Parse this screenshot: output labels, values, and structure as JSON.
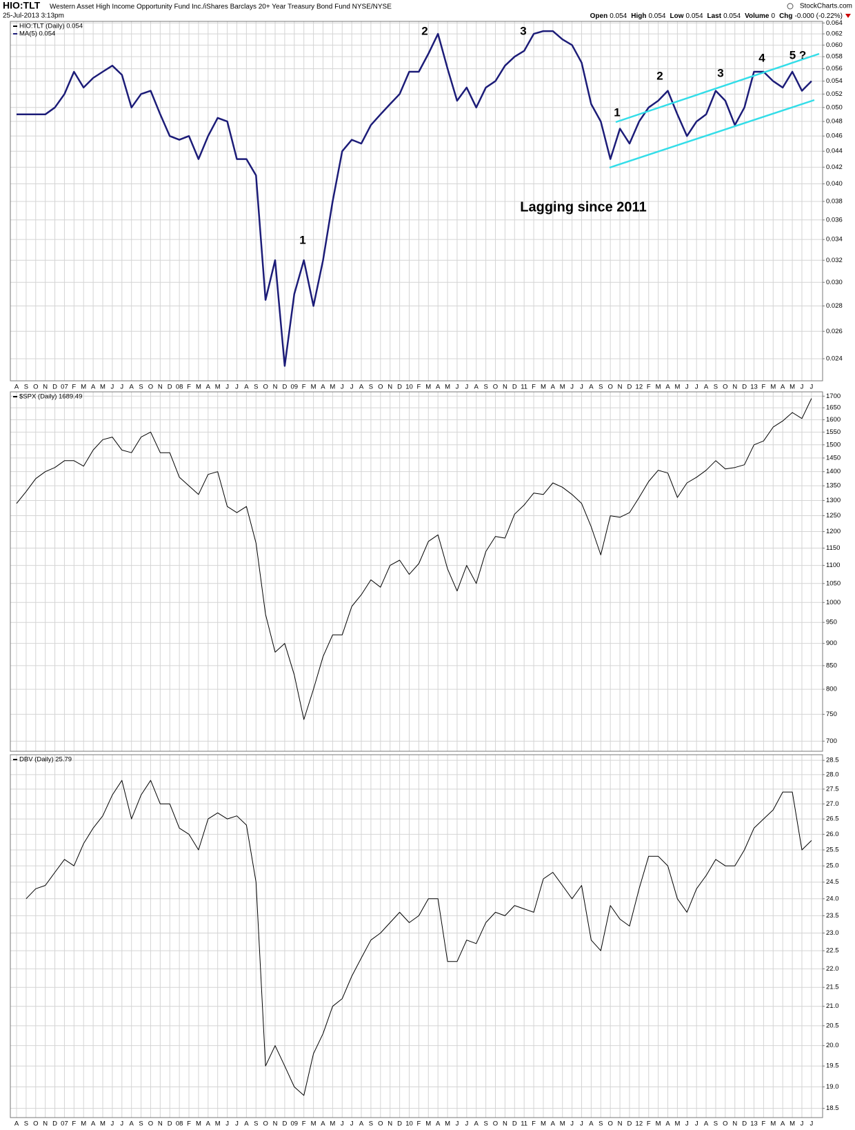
{
  "header": {
    "symbol": "HIO:TLT",
    "description": "Western Asset High Income Opportunity Fund Inc./iShares Barclays 20+ Year Treasury Bond Fund NYSE/NYSE",
    "timestamp": "25-Jul-2013 3:13pm",
    "source": "StockCharts.com",
    "quote": [
      {
        "label": "Open",
        "value": "0.054"
      },
      {
        "label": "High",
        "value": "0.054"
      },
      {
        "label": "Low",
        "value": "0.054"
      },
      {
        "label": "Last",
        "value": "0.054"
      },
      {
        "label": "Volume",
        "value": "0"
      },
      {
        "label": "Chg",
        "value": "-0.000 (-0.22%)"
      }
    ]
  },
  "chart_data": [
    {
      "type": "line",
      "log_scale": true,
      "grid": true,
      "legend": "top-left",
      "categories": [
        "A",
        "S",
        "O",
        "N",
        "D",
        "07",
        "F",
        "M",
        "A",
        "M",
        "J",
        "J",
        "A",
        "S",
        "O",
        "N",
        "D",
        "08",
        "F",
        "M",
        "A",
        "M",
        "J",
        "J",
        "A",
        "S",
        "O",
        "N",
        "D",
        "09",
        "F",
        "M",
        "A",
        "M",
        "J",
        "J",
        "A",
        "S",
        "O",
        "N",
        "D",
        "10",
        "F",
        "M",
        "A",
        "M",
        "J",
        "J",
        "A",
        "S",
        "O",
        "N",
        "D",
        "11",
        "F",
        "M",
        "A",
        "M",
        "J",
        "J",
        "A",
        "S",
        "O",
        "N",
        "D",
        "12",
        "F",
        "M",
        "A",
        "M",
        "J",
        "J",
        "A",
        "S",
        "O",
        "N",
        "D",
        "13",
        "F",
        "M",
        "A",
        "M",
        "J",
        "J"
      ],
      "ylim": [
        0.0225,
        0.0643
      ],
      "yticks": [
        0.024,
        0.026,
        0.028,
        {
          "value": 0.03,
          "label": "0.030"
        },
        0.032,
        0.034,
        0.036,
        0.038,
        {
          "value": 0.04,
          "label": "0.040"
        },
        0.042,
        0.044,
        0.046,
        0.048,
        {
          "value": 0.05,
          "label": "0.050"
        },
        0.052,
        0.054,
        0.056,
        0.058,
        {
          "value": 0.06,
          "label": "0.060"
        },
        0.062,
        0.064
      ],
      "series": [
        {
          "name": "HIO:TLT (Daily) 0.054",
          "color": "#000000",
          "width": 1,
          "values": [
            0.049,
            0.049,
            0.049,
            0.049,
            0.05,
            0.052,
            0.0555,
            0.053,
            0.0545,
            0.0555,
            0.0565,
            0.055,
            0.05,
            0.052,
            0.0525,
            0.049,
            0.046,
            0.0455,
            0.046,
            0.043,
            0.046,
            0.0485,
            0.048,
            0.043,
            0.043,
            0.041,
            0.0285,
            0.032,
            0.0235,
            0.029,
            0.032,
            0.028,
            0.032,
            0.038,
            0.044,
            0.0455,
            0.045,
            0.0475,
            0.049,
            0.0505,
            0.052,
            0.0555,
            0.0555,
            0.0585,
            0.062,
            0.056,
            0.051,
            0.053,
            0.05,
            0.053,
            0.054,
            0.0565,
            0.058,
            0.059,
            0.062,
            0.0625,
            0.0625,
            0.061,
            0.06,
            0.057,
            0.0505,
            0.048,
            0.043,
            0.047,
            0.045,
            0.048,
            0.05,
            0.051,
            0.0525,
            0.049,
            0.046,
            0.048,
            0.049,
            0.0525,
            0.051,
            0.0475,
            0.05,
            0.0555,
            0.0555,
            0.054,
            0.053,
            0.0555,
            0.0525,
            0.054
          ]
        },
        {
          "name": "MA(5) 0.054",
          "color": "#1c1c78",
          "width": 2.5,
          "values": [
            0.049,
            0.049,
            0.049,
            0.049,
            0.05,
            0.052,
            0.0555,
            0.053,
            0.0545,
            0.0555,
            0.0565,
            0.055,
            0.05,
            0.052,
            0.0525,
            0.049,
            0.046,
            0.0455,
            0.046,
            0.043,
            0.046,
            0.0485,
            0.048,
            0.043,
            0.043,
            0.041,
            0.0285,
            0.032,
            0.0235,
            0.029,
            0.032,
            0.028,
            0.032,
            0.038,
            0.044,
            0.0455,
            0.045,
            0.0475,
            0.049,
            0.0505,
            0.052,
            0.0555,
            0.0555,
            0.0585,
            0.062,
            0.056,
            0.051,
            0.053,
            0.05,
            0.053,
            0.054,
            0.0565,
            0.058,
            0.059,
            0.062,
            0.0625,
            0.0625,
            0.061,
            0.06,
            0.057,
            0.0505,
            0.048,
            0.043,
            0.047,
            0.045,
            0.048,
            0.05,
            0.051,
            0.0525,
            0.049,
            0.046,
            0.048,
            0.049,
            0.0525,
            0.051,
            0.0475,
            0.05,
            0.0555,
            0.0555,
            0.054,
            0.053,
            0.0555,
            0.0525,
            0.054
          ]
        }
      ],
      "annotations": [
        {
          "text": "1",
          "color": "#000000"
        },
        {
          "text": "2",
          "color": "#000000"
        },
        {
          "text": "3",
          "color": "#000000"
        },
        {
          "text": "Lagging since 2011",
          "color": "#000000"
        },
        {
          "text": "1",
          "color": "#cc0000"
        },
        {
          "text": "2",
          "color": "#cc0000"
        },
        {
          "text": "3",
          "color": "#cc0000"
        },
        {
          "text": "4",
          "color": "#cc0000"
        },
        {
          "text": "5 ?",
          "color": "#cc0000"
        }
      ]
    },
    {
      "type": "line",
      "log_scale": true,
      "grid": true,
      "legend": "top-left",
      "ylim": [
        682,
        1719
      ],
      "yticks": [
        700,
        750,
        800,
        850,
        900,
        950,
        1000,
        1050,
        1100,
        1150,
        1200,
        1250,
        1300,
        1350,
        1400,
        1450,
        1500,
        1550,
        1600,
        1650,
        1700
      ],
      "series": [
        {
          "name": "$SPX (Daily) 1689.49",
          "color": "#000000",
          "width": 1,
          "values": [
            1290,
            1330,
            1375,
            1400,
            1415,
            1440,
            1440,
            1420,
            1480,
            1520,
            1530,
            1480,
            1470,
            1530,
            1550,
            1470,
            1470,
            1380,
            1350,
            1320,
            1390,
            1400,
            1280,
            1260,
            1280,
            1165,
            970,
            880,
            900,
            830,
            740,
            800,
            870,
            920,
            920,
            990,
            1020,
            1060,
            1040,
            1100,
            1115,
            1075,
            1105,
            1170,
            1190,
            1090,
            1030,
            1100,
            1050,
            1140,
            1185,
            1180,
            1255,
            1285,
            1325,
            1320,
            1360,
            1345,
            1320,
            1290,
            1215,
            1130,
            1250,
            1245,
            1260,
            1310,
            1365,
            1405,
            1395,
            1310,
            1360,
            1380,
            1405,
            1440,
            1410,
            1415,
            1425,
            1500,
            1515,
            1570,
            1595,
            1630,
            1605,
            1690
          ]
        }
      ]
    },
    {
      "type": "line",
      "log_scale": true,
      "grid": true,
      "legend": "top-left",
      "categories": [
        "A",
        "S",
        "O",
        "N",
        "D",
        "07",
        "F",
        "M",
        "A",
        "M",
        "J",
        "J",
        "A",
        "S",
        "O",
        "N",
        "D",
        "08",
        "F",
        "M",
        "A",
        "M",
        "J",
        "J",
        "A",
        "S",
        "O",
        "N",
        "D",
        "09",
        "F",
        "M",
        "A",
        "M",
        "J",
        "J",
        "A",
        "S",
        "O",
        "N",
        "D",
        "10",
        "F",
        "M",
        "A",
        "M",
        "J",
        "J",
        "A",
        "S",
        "O",
        "N",
        "D",
        "11",
        "F",
        "M",
        "A",
        "M",
        "J",
        "J",
        "A",
        "S",
        "O",
        "N",
        "D",
        "12",
        "F",
        "M",
        "A",
        "M",
        "J",
        "J",
        "A",
        "S",
        "O",
        "N",
        "D",
        "13",
        "F",
        "M",
        "A",
        "M",
        "J",
        "J"
      ],
      "ylim": [
        18.29,
        28.7
      ],
      "yticks": [
        18.5,
        {
          "value": 19,
          "label": "19.0"
        },
        19.5,
        {
          "value": 20,
          "label": "20.0"
        },
        20.5,
        {
          "value": 21,
          "label": "21.0"
        },
        21.5,
        {
          "value": 22,
          "label": "22.0"
        },
        22.5,
        {
          "value": 23,
          "label": "23.0"
        },
        23.5,
        {
          "value": 24,
          "label": "24.0"
        },
        24.5,
        {
          "value": 25,
          "label": "25.0"
        },
        25.5,
        {
          "value": 26,
          "label": "26.0"
        },
        26.5,
        {
          "value": 27,
          "label": "27.0"
        },
        27.5,
        {
          "value": 28,
          "label": "28.0"
        },
        28.5
      ],
      "series": [
        {
          "name": "DBV (Daily) 25.79",
          "color": "#000000",
          "width": 1,
          "values": [
            null,
            24.0,
            24.3,
            24.4,
            24.8,
            25.2,
            25.0,
            25.7,
            26.2,
            26.6,
            27.3,
            27.8,
            26.5,
            27.3,
            27.8,
            27.0,
            27.0,
            26.2,
            26.0,
            25.5,
            26.5,
            26.7,
            26.5,
            26.6,
            26.3,
            24.5,
            19.5,
            20.0,
            19.5,
            19.0,
            18.8,
            19.8,
            20.3,
            21.0,
            21.2,
            21.8,
            22.3,
            22.8,
            23.0,
            23.3,
            23.6,
            23.3,
            23.5,
            24.0,
            24.0,
            22.2,
            22.2,
            22.8,
            22.7,
            23.3,
            23.6,
            23.5,
            23.8,
            23.7,
            23.6,
            24.6,
            24.8,
            24.4,
            24.0,
            24.4,
            22.8,
            22.5,
            23.8,
            23.4,
            23.2,
            24.3,
            25.3,
            25.3,
            25.0,
            24.0,
            23.6,
            24.3,
            24.7,
            25.2,
            25.0,
            25.0,
            25.5,
            26.2,
            26.5,
            26.8,
            27.4,
            27.4,
            25.5,
            25.8
          ]
        }
      ]
    }
  ]
}
